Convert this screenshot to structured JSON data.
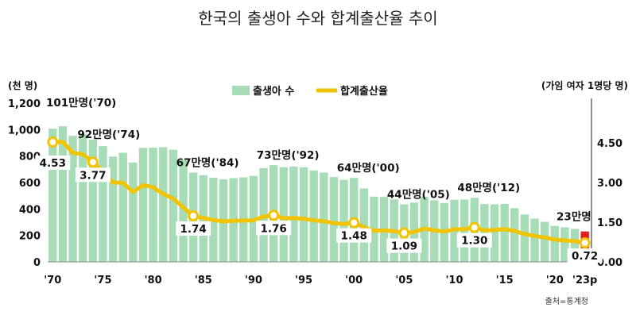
{
  "chart_data": {
    "type": "bar+line",
    "title": "한국의 출생아 수와 합계출산율 추이",
    "left_unit": "(천 명)",
    "right_unit": "(가임 여자 1명당 명)",
    "source": "출처=통계청",
    "legend": [
      "출생아 수",
      "합계출산율"
    ],
    "left_axis": {
      "min": 0,
      "max": 1200,
      "ticks": [
        "0",
        "200",
        "400",
        "600",
        "800",
        "1,000",
        "1,200"
      ]
    },
    "right_axis": {
      "min": 0,
      "max": 6,
      "ticks": [
        "0.00",
        "1.50",
        "3.00",
        "4.50"
      ]
    },
    "years": [
      1970,
      1971,
      1972,
      1973,
      1974,
      1975,
      1976,
      1977,
      1978,
      1979,
      1980,
      1981,
      1982,
      1983,
      1984,
      1985,
      1986,
      1987,
      1988,
      1989,
      1990,
      1991,
      1992,
      1993,
      1994,
      1995,
      1996,
      1997,
      1998,
      1999,
      2000,
      2001,
      2002,
      2003,
      2004,
      2005,
      2006,
      2007,
      2008,
      2009,
      2010,
      2011,
      2012,
      2013,
      2014,
      2015,
      2016,
      2017,
      2018,
      2019,
      2020,
      2021,
      2022,
      2023
    ],
    "x_tick_labels": [
      {
        "year": 1970,
        "label": "'70"
      },
      {
        "year": 1975,
        "label": "'75"
      },
      {
        "year": 1980,
        "label": "'80"
      },
      {
        "year": 1985,
        "label": "'85"
      },
      {
        "year": 1990,
        "label": "'90"
      },
      {
        "year": 1995,
        "label": "'95"
      },
      {
        "year": 2000,
        "label": "'00"
      },
      {
        "year": 2005,
        "label": "'05"
      },
      {
        "year": 2010,
        "label": "'10"
      },
      {
        "year": 2015,
        "label": "'15"
      },
      {
        "year": 2020,
        "label": "'20"
      },
      {
        "year": 2023,
        "label": "'23p"
      }
    ],
    "births_thousands": [
      1007,
      1025,
      953,
      966,
      924,
      875,
      796,
      825,
      751,
      862,
      863,
      867,
      848,
      770,
      675,
      655,
      636,
      624,
      633,
      639,
      650,
      709,
      731,
      716,
      721,
      715,
      691,
      675,
      641,
      620,
      635,
      555,
      493,
      491,
      473,
      435,
      448,
      493,
      466,
      445,
      470,
      471,
      485,
      437,
      435,
      438,
      406,
      358,
      327,
      303,
      272,
      261,
      249,
      230
    ],
    "tfr": [
      4.53,
      4.54,
      4.12,
      4.07,
      3.77,
      3.43,
      3.0,
      2.99,
      2.64,
      2.9,
      2.82,
      2.57,
      2.39,
      2.06,
      1.74,
      1.66,
      1.58,
      1.53,
      1.55,
      1.56,
      1.57,
      1.71,
      1.76,
      1.65,
      1.66,
      1.63,
      1.57,
      1.54,
      1.46,
      1.43,
      1.48,
      1.31,
      1.18,
      1.19,
      1.16,
      1.09,
      1.13,
      1.26,
      1.19,
      1.15,
      1.23,
      1.24,
      1.3,
      1.19,
      1.21,
      1.24,
      1.17,
      1.05,
      0.98,
      0.92,
      0.84,
      0.81,
      0.78,
      0.72
    ],
    "highlight_year": 2023,
    "colors": {
      "bar": "#a6ddb7",
      "bar_highlight": "#e02020",
      "line": "#f2c300",
      "marker_fill": "#ffffff",
      "tfr_label_bg": "#ffffff"
    },
    "birth_annotations": [
      {
        "year": 1970,
        "text": "101만명('70)"
      },
      {
        "year": 1974,
        "text": "92만명('74)"
      },
      {
        "year": 1984,
        "text": "67만명('84)"
      },
      {
        "year": 1992,
        "text": "73만명('92)"
      },
      {
        "year": 2000,
        "text": "64만명('00)"
      },
      {
        "year": 2005,
        "text": "44만명('05)"
      },
      {
        "year": 2012,
        "text": "48만명('12)"
      },
      {
        "year": 2023,
        "text": "23만명"
      }
    ],
    "tfr_annotations": [
      {
        "year": 1970,
        "text": "4.53"
      },
      {
        "year": 1974,
        "text": "3.77"
      },
      {
        "year": 1984,
        "text": "1.74"
      },
      {
        "year": 1992,
        "text": "1.76"
      },
      {
        "year": 2000,
        "text": "1.48"
      },
      {
        "year": 2005,
        "text": "1.09"
      },
      {
        "year": 2012,
        "text": "1.30"
      },
      {
        "year": 2023,
        "text": "0.72"
      }
    ]
  }
}
